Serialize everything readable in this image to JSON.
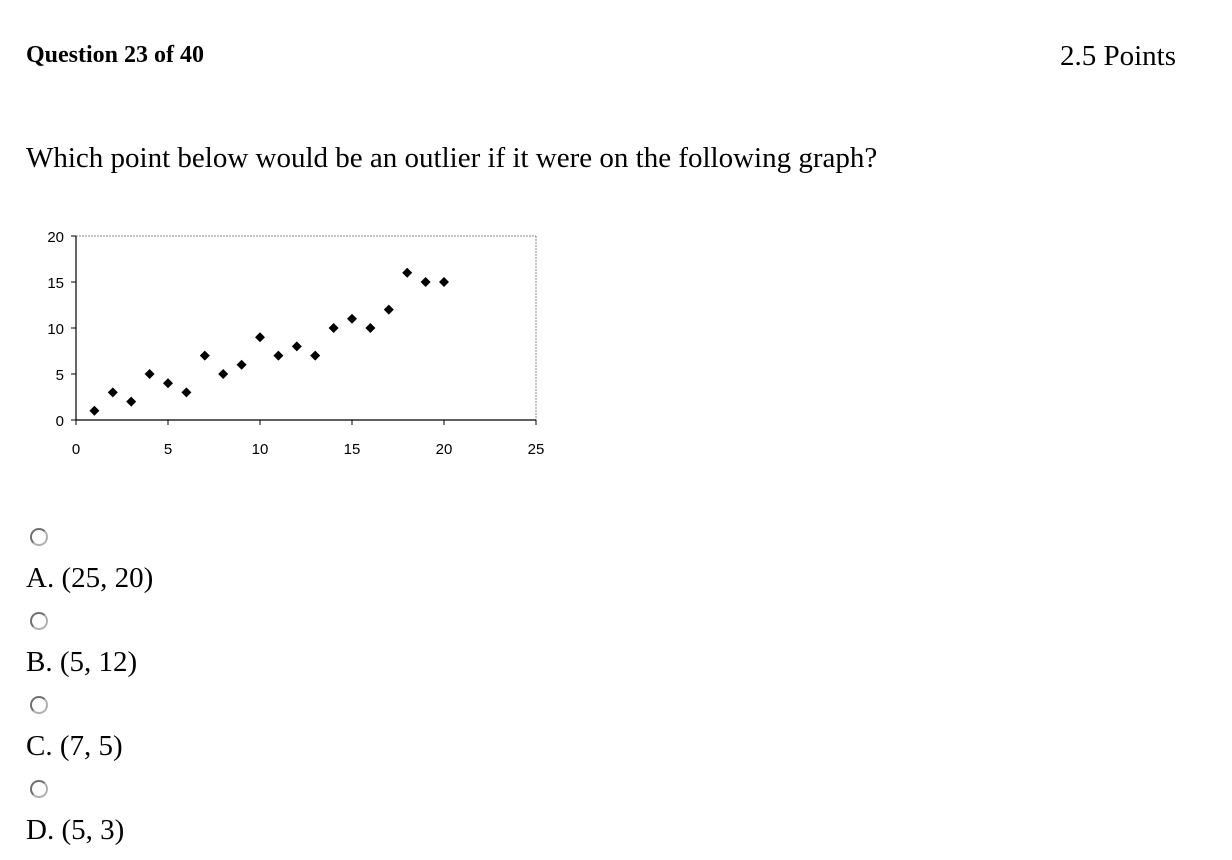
{
  "question": {
    "number_text": "Question 23 of 40",
    "points_text": "2.5 Points",
    "prompt": "Which point below would be an outlier if it were on the following graph?"
  },
  "chart_data": {
    "type": "scatter",
    "title": "",
    "xlabel": "",
    "ylabel": "",
    "xlim": [
      0,
      25
    ],
    "ylim": [
      0,
      20
    ],
    "xticks": [
      0,
      5,
      10,
      15,
      20,
      25
    ],
    "yticks": [
      0,
      5,
      10,
      15,
      20
    ],
    "grid": false,
    "legend": "none",
    "marker": "diamond",
    "marker_color": "#000000",
    "points": [
      {
        "x": 1,
        "y": 1
      },
      {
        "x": 2,
        "y": 3
      },
      {
        "x": 3,
        "y": 2
      },
      {
        "x": 4,
        "y": 5
      },
      {
        "x": 5,
        "y": 4
      },
      {
        "x": 6,
        "y": 3
      },
      {
        "x": 7,
        "y": 7
      },
      {
        "x": 8,
        "y": 5
      },
      {
        "x": 9,
        "y": 6
      },
      {
        "x": 10,
        "y": 9
      },
      {
        "x": 11,
        "y": 7
      },
      {
        "x": 12,
        "y": 8
      },
      {
        "x": 13,
        "y": 7
      },
      {
        "x": 14,
        "y": 10
      },
      {
        "x": 15,
        "y": 11
      },
      {
        "x": 16,
        "y": 10
      },
      {
        "x": 17,
        "y": 12
      },
      {
        "x": 18,
        "y": 16
      },
      {
        "x": 19,
        "y": 15
      },
      {
        "x": 20,
        "y": 15
      }
    ]
  },
  "options": [
    {
      "label": "A. (25, 20)"
    },
    {
      "label": "B. (5, 12)"
    },
    {
      "label": "C. (7, 5)"
    },
    {
      "label": "D. (5, 3)"
    }
  ]
}
